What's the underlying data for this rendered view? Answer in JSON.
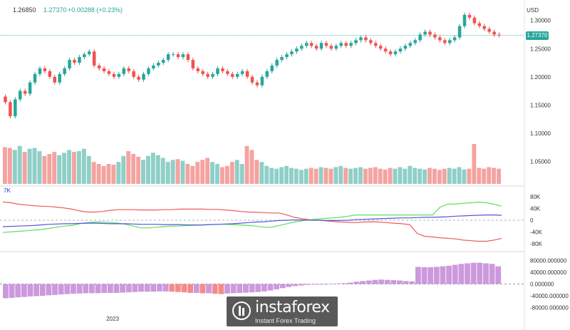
{
  "header": {
    "open_value": "1.26850",
    "last_value": "1.27370",
    "change_text": "+0.00288 (+0.23%)",
    "currency": "USD"
  },
  "indicator_label": "7K",
  "watermark": {
    "brand": "instaforex",
    "tagline": "Instant Forex Trading"
  },
  "colors": {
    "up": "#26a69a",
    "down": "#ef5350",
    "vol_up": "#8fcfc7",
    "vol_down": "#f4a3a0",
    "green_line": "#59e05a",
    "red_line": "#f05a5a",
    "blue_line": "#5555dd",
    "hist_pos": "#cc99dd",
    "hist_neg": "#f28c8c"
  },
  "chart_data": [
    {
      "type": "candlestick",
      "ylabel": "USD",
      "y_ticks": [
        "1.30000",
        "1.25000",
        "1.20000",
        "1.15000",
        "1.10000",
        "1.05000"
      ],
      "y_tick_values": [
        1.3,
        1.25,
        1.2,
        1.15,
        1.1,
        1.05
      ],
      "ylim": [
        1.01,
        1.33
      ],
      "last_price": 1.2737,
      "last_price_label": "1.27370",
      "x_tick_label": "2023",
      "close_series": [
        1.155,
        1.13,
        1.16,
        1.175,
        1.17,
        1.19,
        1.205,
        1.215,
        1.21,
        1.2,
        1.19,
        1.205,
        1.215,
        1.23,
        1.225,
        1.235,
        1.24,
        1.245,
        1.22,
        1.215,
        1.21,
        1.205,
        1.2,
        1.205,
        1.215,
        1.21,
        1.2,
        1.195,
        1.205,
        1.215,
        1.22,
        1.225,
        1.23,
        1.24,
        1.24,
        1.235,
        1.24,
        1.23,
        1.215,
        1.21,
        1.205,
        1.2,
        1.205,
        1.215,
        1.21,
        1.205,
        1.2,
        1.205,
        1.21,
        1.2,
        1.19,
        1.185,
        1.2,
        1.21,
        1.22,
        1.23,
        1.235,
        1.24,
        1.245,
        1.25,
        1.255,
        1.26,
        1.255,
        1.25,
        1.26,
        1.255,
        1.25,
        1.255,
        1.26,
        1.255,
        1.26,
        1.265,
        1.27,
        1.265,
        1.26,
        1.255,
        1.25,
        1.245,
        1.24,
        1.245,
        1.25,
        1.255,
        1.26,
        1.265,
        1.275,
        1.28,
        1.275,
        1.27,
        1.265,
        1.26,
        1.265,
        1.27,
        1.29,
        1.31,
        1.305,
        1.295,
        1.29,
        1.285,
        1.28,
        1.275,
        1.2737
      ],
      "volume_series": [
        0.92,
        0.9,
        0.85,
        0.95,
        0.8,
        0.88,
        0.9,
        0.82,
        0.7,
        0.75,
        0.8,
        0.72,
        0.78,
        0.85,
        0.8,
        0.82,
        0.88,
        0.7,
        0.55,
        0.5,
        0.45,
        0.5,
        0.48,
        0.55,
        0.7,
        0.82,
        0.75,
        0.68,
        0.6,
        0.7,
        0.78,
        0.72,
        0.65,
        0.55,
        0.6,
        0.62,
        0.58,
        0.5,
        0.45,
        0.55,
        0.6,
        0.65,
        0.55,
        0.5,
        0.42,
        0.45,
        0.55,
        0.6,
        0.5,
        0.95,
        0.85,
        0.6,
        0.55,
        0.45,
        0.4,
        0.38,
        0.42,
        0.45,
        0.4,
        0.38,
        0.35,
        0.38,
        0.4,
        0.38,
        0.42,
        0.4,
        0.38,
        0.42,
        0.45,
        0.4,
        0.38,
        0.4,
        0.42,
        0.38,
        0.4,
        0.42,
        0.38,
        0.36,
        0.4,
        0.38,
        0.42,
        0.38,
        0.45,
        0.4,
        0.38,
        0.36,
        0.4,
        0.38,
        0.35,
        0.38,
        0.4,
        0.38,
        0.42,
        0.36,
        0.38,
        1.0,
        0.4,
        0.38,
        0.42,
        0.4,
        0.38
      ]
    },
    {
      "type": "line",
      "y_ticks": [
        "80K",
        "40K",
        "0",
        "-40K",
        "-80K"
      ],
      "y_tick_values": [
        80000,
        40000,
        0,
        -40000,
        -80000
      ],
      "ylim": [
        -100000,
        100000
      ],
      "series": [
        {
          "color_key": "red_line",
          "values": [
            63000,
            60000,
            55000,
            52000,
            50000,
            48000,
            47000,
            45000,
            42000,
            38000,
            32000,
            28000,
            28000,
            30000,
            34000,
            36000,
            36000,
            36000,
            35000,
            35000,
            35000,
            36000,
            36000,
            38000,
            38000,
            38000,
            38000,
            37000,
            37000,
            35000,
            33000,
            30000,
            28000,
            27000,
            26000,
            25000,
            25000,
            18000,
            10000,
            5000,
            2000,
            0,
            -2000,
            -4000,
            -6000,
            -7000,
            -8000,
            -6000,
            -5000,
            -6000,
            -8000,
            -10000,
            -12000,
            -15000,
            -45000,
            -55000,
            -57000,
            -60000,
            -62000,
            -64000,
            -68000,
            -70000,
            -72000,
            -72000,
            -68000,
            -62000
          ]
        },
        {
          "color_key": "green_line",
          "values": [
            -42000,
            -40000,
            -38000,
            -36000,
            -34000,
            -32000,
            -28000,
            -24000,
            -20000,
            -18000,
            -12000,
            -8000,
            -6000,
            -6000,
            -8000,
            -10000,
            -14000,
            -20000,
            -26000,
            -26000,
            -24000,
            -22000,
            -20000,
            -20000,
            -18000,
            -17000,
            -16000,
            -15000,
            -14000,
            -14000,
            -15000,
            -16000,
            -18000,
            -20000,
            -24000,
            -24000,
            -18000,
            -12000,
            -6000,
            -2000,
            2000,
            4000,
            6000,
            8000,
            10000,
            14000,
            18000,
            18000,
            18000,
            18000,
            18000,
            18000,
            18000,
            18000,
            18000,
            18000,
            18000,
            45000,
            55000,
            55000,
            58000,
            60000,
            62000,
            60000,
            55000,
            48000
          ]
        },
        {
          "color_key": "blue_line",
          "values": [
            -22000,
            -21000,
            -20000,
            -19000,
            -18000,
            -16000,
            -14000,
            -13000,
            -12000,
            -12000,
            -11000,
            -10000,
            -10000,
            -11000,
            -12000,
            -12000,
            -12000,
            -13000,
            -14000,
            -14000,
            -14000,
            -15000,
            -15000,
            -15000,
            -16000,
            -16000,
            -16000,
            -15000,
            -14000,
            -13000,
            -12000,
            -10000,
            -8000,
            -6000,
            -5000,
            -3000,
            -1000,
            0,
            1000,
            1000,
            0,
            0,
            -1000,
            -1000,
            -1000,
            0,
            2000,
            3000,
            4000,
            5000,
            6000,
            7000,
            8000,
            8000,
            9000,
            10000,
            10000,
            11000,
            12000,
            14000,
            15000,
            16000,
            17000,
            18000,
            18000,
            17000
          ]
        }
      ]
    },
    {
      "type": "bar",
      "y_ticks": [
        "80000.000000",
        "40000.000000",
        "0.000000",
        "-40000.000000",
        "-80000.000000"
      ],
      "y_tick_values": [
        80000,
        40000,
        0,
        -40000,
        -80000
      ],
      "ylim": [
        -100000,
        100000
      ],
      "values": [
        -48000,
        -47000,
        -45000,
        -44000,
        -42000,
        -41000,
        -40000,
        -38000,
        -37000,
        -35000,
        -34000,
        -33000,
        -32000,
        -31000,
        -31000,
        -31000,
        -30000,
        -30000,
        -30000,
        -29000,
        -28000,
        -27000,
        -26000,
        -26000,
        -26000,
        -25000,
        -25000,
        -26000,
        -27000,
        -28000,
        -30000,
        -30000,
        -31000,
        -31000,
        -33000,
        -34000,
        -32000,
        -31000,
        -30000,
        -29000,
        -28000,
        -27000,
        -25000,
        -22000,
        -18000,
        -14000,
        -10000,
        -7000,
        -5000,
        -3000,
        -2000,
        -1000,
        0,
        1000,
        2000,
        3000,
        5000,
        8000,
        10000,
        12000,
        14000,
        15000,
        14000,
        13000,
        12000,
        10000,
        9000,
        58000,
        57000,
        57000,
        58000,
        60000,
        62000,
        65000,
        68000,
        70000,
        72000,
        72000,
        70000,
        68000,
        60000
      ]
    }
  ]
}
